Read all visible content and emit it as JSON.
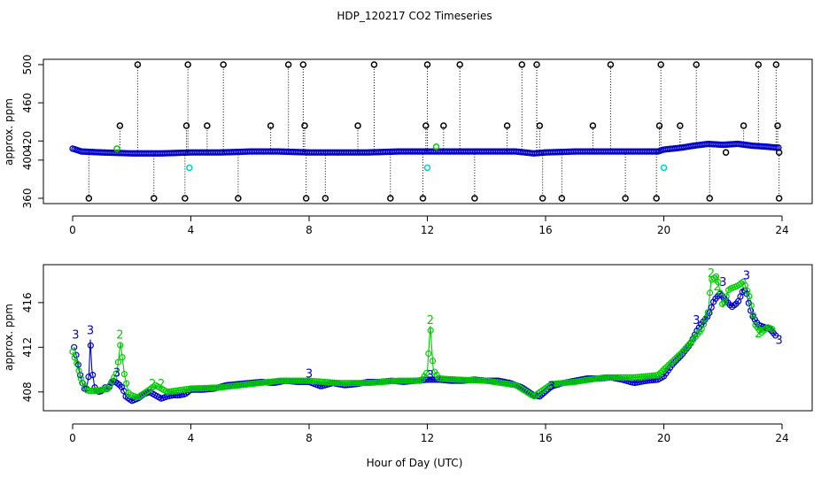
{
  "title": "HDP_120217  CO2 Timeseries",
  "xlabel": "Hour of Day (UTC)",
  "colors": {
    "black": "#000000",
    "blue": "#0000cc",
    "green": "#00cc00",
    "cyan": "#00cccc"
  },
  "chart_data": [
    {
      "type": "scatter",
      "panel": "top",
      "ylabel": "approx. ppm",
      "xlim": [
        0,
        24
      ],
      "ylim": [
        360,
        500
      ],
      "x_ticks": [
        0,
        4,
        8,
        12,
        16,
        20,
        24
      ],
      "y_ticks": [
        360,
        400,
        420,
        460,
        500
      ],
      "baseline": [
        [
          0.0,
          412
        ],
        [
          0.3,
          409
        ],
        [
          1.0,
          408
        ],
        [
          2.0,
          407
        ],
        [
          3.0,
          407
        ],
        [
          4.0,
          408
        ],
        [
          5.0,
          408
        ],
        [
          6.0,
          409
        ],
        [
          7.0,
          409
        ],
        [
          8.0,
          408
        ],
        [
          9.0,
          408
        ],
        [
          10.0,
          408
        ],
        [
          11.0,
          409
        ],
        [
          12.0,
          409
        ],
        [
          13.0,
          409
        ],
        [
          14.0,
          409
        ],
        [
          15.0,
          409
        ],
        [
          15.6,
          407
        ],
        [
          16.0,
          408
        ],
        [
          17.0,
          409
        ],
        [
          18.0,
          409
        ],
        [
          19.0,
          409
        ],
        [
          19.8,
          409
        ],
        [
          20.0,
          411
        ],
        [
          20.6,
          413
        ],
        [
          21.0,
          415
        ],
        [
          21.5,
          417
        ],
        [
          22.0,
          416
        ],
        [
          22.5,
          417
        ],
        [
          23.0,
          415
        ],
        [
          23.5,
          414
        ],
        [
          23.8,
          413
        ]
      ],
      "outliers_high": [
        2.2,
        3.9,
        5.1,
        7.3,
        7.8,
        10.2,
        12.0,
        13.1,
        15.2,
        15.7,
        18.2,
        19.9,
        21.1,
        23.2,
        23.8
      ],
      "outliers_low": [
        0.55,
        2.75,
        3.8,
        5.6,
        7.9,
        8.55,
        10.75,
        11.85,
        13.6,
        15.9,
        16.55,
        18.7,
        19.75,
        21.55,
        23.9
      ],
      "outliers_mid": [
        1.6,
        3.85,
        4.55,
        6.7,
        7.85,
        9.65,
        11.95,
        12.55,
        14.7,
        15.8,
        17.6,
        19.85,
        20.55,
        22.7,
        23.85
      ],
      "cyan_points": [
        [
          3.95,
          392
        ],
        [
          12.0,
          392
        ],
        [
          20.0,
          392
        ]
      ],
      "green_points": [
        [
          1.5,
          412
        ],
        [
          12.3,
          414
        ]
      ],
      "extra_black": [
        [
          22.1,
          408
        ],
        [
          23.9,
          408
        ]
      ]
    },
    {
      "type": "scatter",
      "panel": "bottom",
      "ylabel": "approx. ppm",
      "xlim": [
        0,
        24
      ],
      "ylim": [
        406,
        419
      ],
      "x_ticks": [
        0,
        4,
        8,
        12,
        16,
        20,
        24
      ],
      "y_ticks": [
        408,
        412,
        416
      ],
      "series": [
        {
          "name": "3",
          "color": "#0000cc",
          "points": [
            [
              0.05,
              412.0
            ],
            [
              0.15,
              411.0
            ],
            [
              0.25,
              409.6
            ],
            [
              0.35,
              408.6
            ],
            [
              0.45,
              408.0
            ],
            [
              0.55,
              409.5
            ],
            [
              0.6,
              412.7
            ],
            [
              0.65,
              410.0
            ],
            [
              0.75,
              408.4
            ],
            [
              0.85,
              408.0
            ],
            [
              1.0,
              408.1
            ],
            [
              1.1,
              408.4
            ],
            [
              1.2,
              408.2
            ],
            [
              1.3,
              408.8
            ],
            [
              1.4,
              409.0
            ],
            [
              1.5,
              408.8
            ],
            [
              1.6,
              408.6
            ],
            [
              1.7,
              408.3
            ],
            [
              1.8,
              407.6
            ],
            [
              2.0,
              407.2
            ],
            [
              2.2,
              407.4
            ],
            [
              2.4,
              407.8
            ],
            [
              2.6,
              408.0
            ],
            [
              2.8,
              407.7
            ],
            [
              3.0,
              407.4
            ],
            [
              3.2,
              407.6
            ],
            [
              3.4,
              407.7
            ],
            [
              3.6,
              407.7
            ],
            [
              3.8,
              407.8
            ],
            [
              4.0,
              408.2
            ],
            [
              4.4,
              408.2
            ],
            [
              4.8,
              408.3
            ],
            [
              5.2,
              408.6
            ],
            [
              5.6,
              408.7
            ],
            [
              6.0,
              408.8
            ],
            [
              6.4,
              408.9
            ],
            [
              6.8,
              408.8
            ],
            [
              7.2,
              409.0
            ],
            [
              7.6,
              408.9
            ],
            [
              8.0,
              408.9
            ],
            [
              8.4,
              408.5
            ],
            [
              8.8,
              408.8
            ],
            [
              9.2,
              408.6
            ],
            [
              9.6,
              408.7
            ],
            [
              10.0,
              408.9
            ],
            [
              10.4,
              408.9
            ],
            [
              10.8,
              409.0
            ],
            [
              11.2,
              408.9
            ],
            [
              11.6,
              409.0
            ],
            [
              12.0,
              409.1
            ],
            [
              12.4,
              409.1
            ],
            [
              12.8,
              409.0
            ],
            [
              13.2,
              409.0
            ],
            [
              13.6,
              409.1
            ],
            [
              14.0,
              409.0
            ],
            [
              14.4,
              409.0
            ],
            [
              14.8,
              408.8
            ],
            [
              15.2,
              408.4
            ],
            [
              15.6,
              407.7
            ],
            [
              15.8,
              407.6
            ],
            [
              16.2,
              408.5
            ],
            [
              16.6,
              408.8
            ],
            [
              17.0,
              409.0
            ],
            [
              17.4,
              409.2
            ],
            [
              17.8,
              409.2
            ],
            [
              18.2,
              409.3
            ],
            [
              18.6,
              409.1
            ],
            [
              19.0,
              408.8
            ],
            [
              19.4,
              409.0
            ],
            [
              19.8,
              409.1
            ],
            [
              20.0,
              409.4
            ],
            [
              20.3,
              410.5
            ],
            [
              20.6,
              411.3
            ],
            [
              20.9,
              412.3
            ],
            [
              21.1,
              413.4
            ],
            [
              21.3,
              414.2
            ],
            [
              21.5,
              414.8
            ],
            [
              21.7,
              416.2
            ],
            [
              21.9,
              416.8
            ],
            [
              22.1,
              416.2
            ],
            [
              22.3,
              415.6
            ],
            [
              22.5,
              416.0
            ],
            [
              22.7,
              417.2
            ],
            [
              22.8,
              416.8
            ],
            [
              22.9,
              415.6
            ],
            [
              23.0,
              414.8
            ],
            [
              23.2,
              414.0
            ],
            [
              23.4,
              413.8
            ],
            [
              23.6,
              413.6
            ],
            [
              23.8,
              413.0
            ]
          ],
          "labels": [
            [
              0.1,
              413.1
            ],
            [
              0.6,
              413.5
            ],
            [
              1.5,
              409.7
            ],
            [
              8.0,
              409.6
            ],
            [
              12.1,
              409.5
            ],
            [
              16.2,
              408.5
            ],
            [
              21.1,
              414.4
            ],
            [
              22.0,
              417.8
            ],
            [
              22.8,
              418.4
            ],
            [
              23.9,
              412.6
            ]
          ]
        },
        {
          "name": "2",
          "color": "#00cc00",
          "points": [
            [
              0.0,
              411.6
            ],
            [
              0.15,
              410.5
            ],
            [
              0.3,
              409.0
            ],
            [
              0.5,
              408.1
            ],
            [
              0.8,
              408.1
            ],
            [
              1.2,
              408.3
            ],
            [
              1.5,
              409.8
            ],
            [
              1.62,
              412.4
            ],
            [
              1.75,
              409.6
            ],
            [
              1.9,
              407.8
            ],
            [
              2.2,
              407.5
            ],
            [
              2.6,
              408.2
            ],
            [
              2.8,
              408.6
            ],
            [
              3.2,
              408.0
            ],
            [
              4.0,
              408.3
            ],
            [
              5.0,
              408.4
            ],
            [
              6.0,
              408.7
            ],
            [
              7.0,
              409.0
            ],
            [
              8.0,
              409.0
            ],
            [
              9.0,
              408.8
            ],
            [
              10.0,
              408.8
            ],
            [
              11.0,
              409.0
            ],
            [
              11.8,
              409.0
            ],
            [
              12.0,
              409.8
            ],
            [
              12.1,
              413.9
            ],
            [
              12.2,
              410.0
            ],
            [
              12.4,
              409.2
            ],
            [
              13.0,
              409.1
            ],
            [
              14.0,
              409.0
            ],
            [
              15.0,
              408.6
            ],
            [
              15.6,
              407.6
            ],
            [
              16.2,
              408.7
            ],
            [
              17.0,
              408.9
            ],
            [
              18.0,
              409.3
            ],
            [
              19.0,
              409.3
            ],
            [
              19.8,
              409.5
            ],
            [
              20.2,
              410.5
            ],
            [
              20.6,
              411.5
            ],
            [
              21.0,
              412.7
            ],
            [
              21.3,
              413.7
            ],
            [
              21.5,
              415.2
            ],
            [
              21.6,
              418.0
            ],
            [
              21.8,
              418.4
            ],
            [
              22.0,
              415.6
            ],
            [
              22.2,
              417.2
            ],
            [
              22.5,
              417.5
            ],
            [
              22.7,
              417.9
            ],
            [
              22.9,
              416.5
            ],
            [
              23.1,
              414.0
            ],
            [
              23.3,
              413.3
            ],
            [
              23.5,
              413.8
            ],
            [
              23.7,
              413.6
            ]
          ],
          "labels": [
            [
              1.6,
              413.1
            ],
            [
              2.7,
              408.7
            ],
            [
              3.0,
              408.7
            ],
            [
              12.1,
              414.4
            ],
            [
              21.6,
              418.6
            ],
            [
              21.8,
              417.4
            ],
            [
              23.2,
              413.2
            ]
          ]
        }
      ]
    }
  ]
}
